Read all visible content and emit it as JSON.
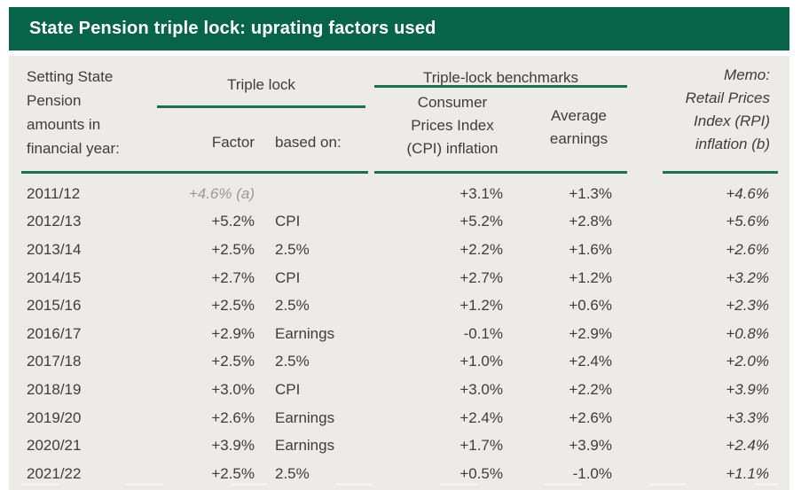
{
  "title_bar": {
    "title": "State Pension triple lock: uprating factors used"
  },
  "header": {
    "year_column": "Setting State\nPension\namounts in\nfinancial year:",
    "triple_lock_group": "Triple lock",
    "factor_label": "Factor",
    "based_on_label": "based on:",
    "benchmarks_group": "Triple-lock benchmarks",
    "cpi_column": "Consumer\nPrices Index\n(CPI) inflation",
    "earnings_column": "Average\nearnings",
    "memo_column": "Memo:\nRetail Prices\nIndex (RPI)\ninflation (b)"
  },
  "colors": {
    "header_bar_green": "#076448",
    "rule_green": "#1d6e53",
    "body_background": "#edebe8",
    "text": "#3f3d3c",
    "faded_note": "#9b9993"
  },
  "chart_data": {
    "type": "table",
    "title": "State Pension triple lock: uprating factors used",
    "columns": [
      "Setting State Pension amounts in financial year:",
      "Triple lock Factor",
      "Triple lock based on:",
      "Consumer Prices Index (CPI) inflation",
      "Average earnings",
      "Memo: Retail Prices Index (RPI) inflation (b)"
    ],
    "rows": [
      [
        "2011/12",
        "+4.6% (a)",
        "",
        "+3.1%",
        "+1.3%",
        "+4.6%"
      ],
      [
        "2012/13",
        "+5.2%",
        "CPI",
        "+5.2%",
        "+2.8%",
        "+5.6%"
      ],
      [
        "2013/14",
        "+2.5%",
        "2.5%",
        "+2.2%",
        "+1.6%",
        "+2.6%"
      ],
      [
        "2014/15",
        "+2.7%",
        "CPI",
        "+2.7%",
        "+1.2%",
        "+3.2%"
      ],
      [
        "2015/16",
        "+2.5%",
        "2.5%",
        "+1.2%",
        "+0.6%",
        "+2.3%"
      ],
      [
        "2016/17",
        "+2.9%",
        "Earnings",
        "-0.1%",
        "+2.9%",
        "+0.8%"
      ],
      [
        "2017/18",
        "+2.5%",
        "2.5%",
        "+1.0%",
        "+2.4%",
        "+2.0%"
      ],
      [
        "2018/19",
        "+3.0%",
        "CPI",
        "+3.0%",
        "+2.2%",
        "+3.9%"
      ],
      [
        "2019/20",
        "+2.6%",
        "Earnings",
        "+2.4%",
        "+2.6%",
        "+3.3%"
      ],
      [
        "2020/21",
        "+3.9%",
        "Earnings",
        "+1.7%",
        "+3.9%",
        "+2.4%"
      ],
      [
        "2021/22",
        "+2.5%",
        "2.5%",
        "+0.5%",
        "-1.0%",
        "+1.1%"
      ]
    ]
  }
}
